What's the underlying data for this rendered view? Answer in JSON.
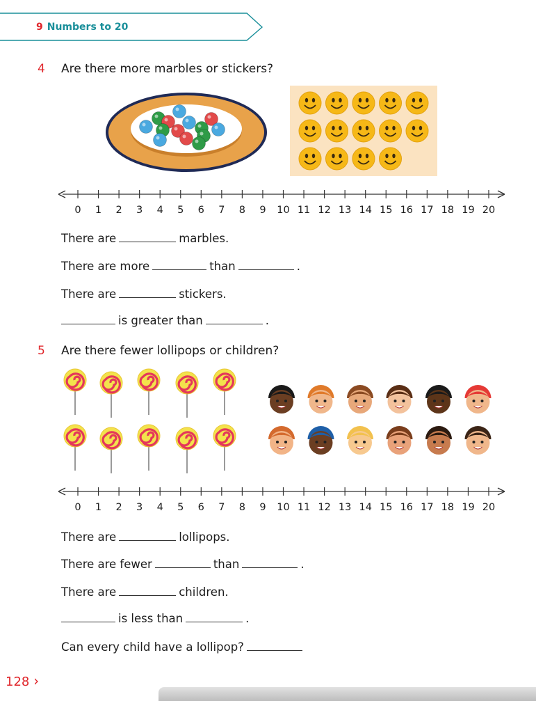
{
  "header": {
    "chapter_number": "9",
    "chapter_title": "Numbers to 20"
  },
  "q4": {
    "number": "4",
    "question": "Are there more marbles or stickers?",
    "line1": {
      "a": "There are",
      "b": "marbles."
    },
    "line2": {
      "a": "There are more",
      "b": "than",
      "c": "."
    },
    "line3": {
      "a": "There are",
      "b": "stickers."
    },
    "line4": {
      "a": "is greater than",
      "b": "."
    }
  },
  "q5": {
    "number": "5",
    "question": "Are there fewer lollipops or children?",
    "line1": {
      "a": "There are",
      "b": "lollipops."
    },
    "line2": {
      "a": "There are fewer",
      "b": "than",
      "c": "."
    },
    "line3": {
      "a": "There are",
      "b": "children."
    },
    "line4": {
      "a": "is less than",
      "b": "."
    },
    "line5": {
      "a": "Can every child have a lollipop?"
    }
  },
  "number_line_labels": [
    "0",
    "1",
    "2",
    "3",
    "4",
    "5",
    "6",
    "7",
    "8",
    "9",
    "10",
    "11",
    "12",
    "13",
    "14",
    "15",
    "16",
    "17",
    "18",
    "19",
    "20"
  ],
  "illustrations": {
    "marble_count": 14,
    "sticker_count": 14,
    "lollipop_count": 10,
    "children_count": 12
  },
  "colors": {
    "accent_red": "#e0262b",
    "header_teal": "#1a8f9a",
    "sticker_bg": "#fbe3c1",
    "plate_orange": "#e8a24a"
  },
  "page_number": "128"
}
